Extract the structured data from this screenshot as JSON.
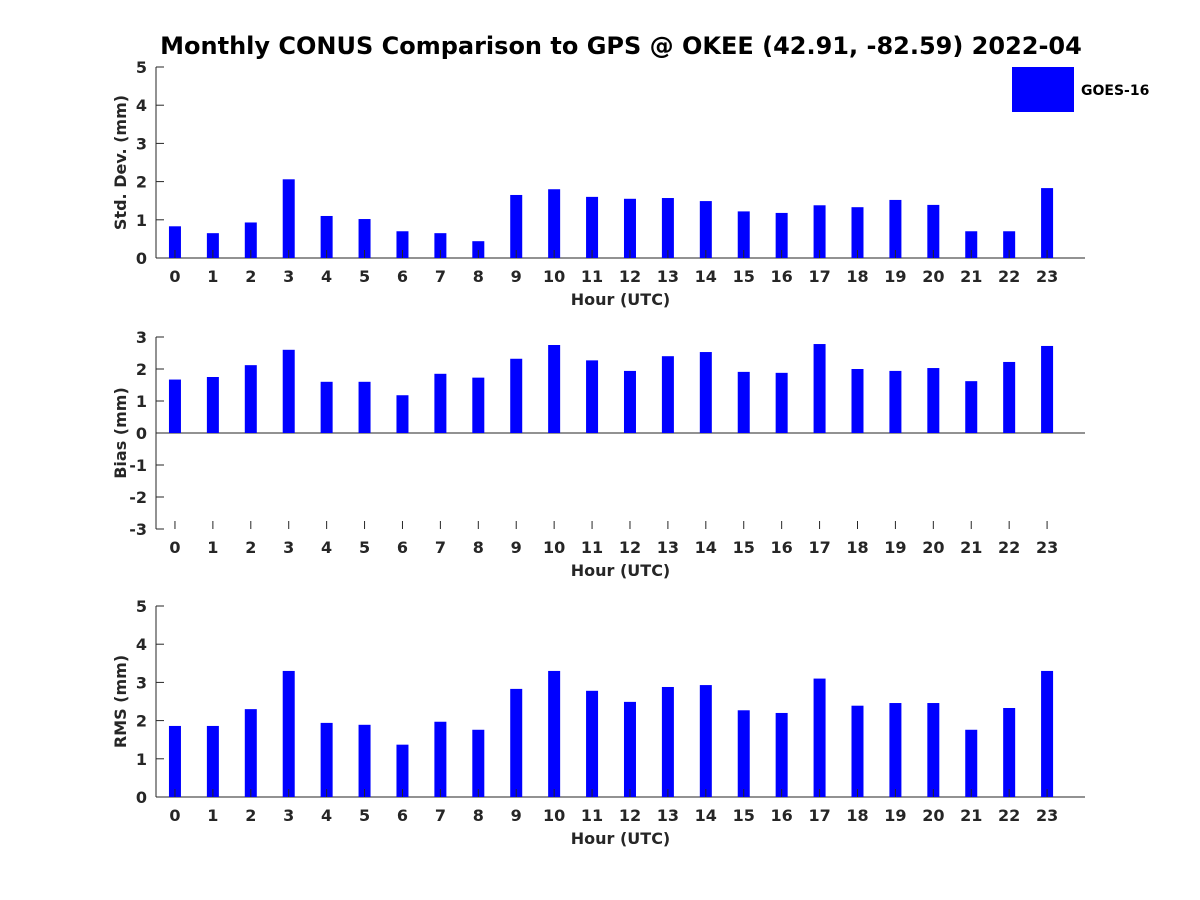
{
  "chart_data": {
    "title": "Monthly CONUS Comparison to GPS @ OKEE (42.91, -82.59) 2022-04",
    "legend": {
      "label": "GOES-16",
      "color": "#0000ff",
      "placement": "top-right"
    },
    "panels": [
      {
        "type": "bar",
        "name": "std-dev",
        "xlabel": "Hour (UTC)",
        "ylabel": "Std. Dev. (mm)",
        "ylim": [
          0,
          5
        ],
        "yticks": [
          "0",
          "1",
          "2",
          "3",
          "4",
          "5"
        ],
        "categories": [
          "0",
          "1",
          "2",
          "3",
          "4",
          "5",
          "6",
          "7",
          "8",
          "9",
          "10",
          "11",
          "12",
          "13",
          "14",
          "15",
          "16",
          "17",
          "18",
          "19",
          "20",
          "21",
          "22",
          "23"
        ],
        "series": [
          {
            "name": "GOES-16",
            "values": [
              0.83,
              0.65,
              0.93,
              2.06,
              1.1,
              1.02,
              0.7,
              0.65,
              0.44,
              1.65,
              1.8,
              1.6,
              1.55,
              1.57,
              1.49,
              1.22,
              1.18,
              1.38,
              1.33,
              1.52,
              1.39,
              0.7,
              0.7,
              1.83
            ]
          }
        ]
      },
      {
        "type": "bar",
        "name": "bias",
        "xlabel": "Hour (UTC)",
        "ylabel": "Bias (mm)",
        "ylim": [
          -3,
          3
        ],
        "yticks": [
          "-3",
          "-2",
          "-1",
          "0",
          "1",
          "2",
          "3"
        ],
        "categories": [
          "0",
          "1",
          "2",
          "3",
          "4",
          "5",
          "6",
          "7",
          "8",
          "9",
          "10",
          "11",
          "12",
          "13",
          "14",
          "15",
          "16",
          "17",
          "18",
          "19",
          "20",
          "21",
          "22",
          "23"
        ],
        "series": [
          {
            "name": "GOES-16",
            "values": [
              1.67,
              1.75,
              2.12,
              2.6,
              1.6,
              1.6,
              1.18,
              1.85,
              1.73,
              2.32,
              2.75,
              2.27,
              1.94,
              2.4,
              2.53,
              1.91,
              1.88,
              2.78,
              2.0,
              1.94,
              2.03,
              1.62,
              2.22,
              2.72
            ]
          }
        ]
      },
      {
        "type": "bar",
        "name": "rms",
        "xlabel": "Hour (UTC)",
        "ylabel": "RMS (mm)",
        "ylim": [
          0,
          5
        ],
        "yticks": [
          "0",
          "1",
          "2",
          "3",
          "4",
          "5"
        ],
        "categories": [
          "0",
          "1",
          "2",
          "3",
          "4",
          "5",
          "6",
          "7",
          "8",
          "9",
          "10",
          "11",
          "12",
          "13",
          "14",
          "15",
          "16",
          "17",
          "18",
          "19",
          "20",
          "21",
          "22",
          "23"
        ],
        "series": [
          {
            "name": "GOES-16",
            "values": [
              1.86,
              1.86,
              2.3,
              3.3,
              1.94,
              1.89,
              1.37,
              1.97,
              1.76,
              2.83,
              3.3,
              2.78,
              2.49,
              2.88,
              2.93,
              2.27,
              2.2,
              3.1,
              2.39,
              2.46,
              2.46,
              1.76,
              2.33,
              3.3
            ]
          }
        ]
      }
    ]
  }
}
